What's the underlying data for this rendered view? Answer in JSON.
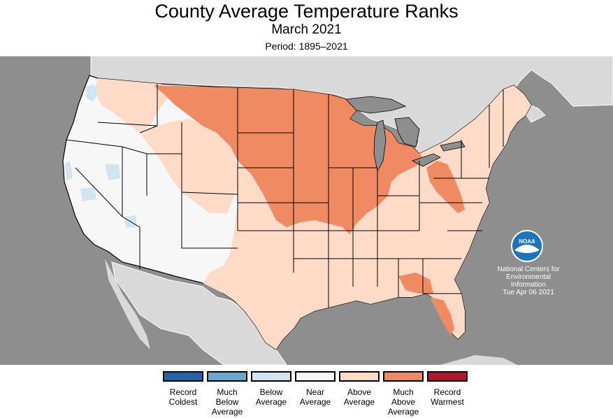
{
  "header": {
    "title": "County Average Temperature Ranks",
    "subtitle": "March 2021",
    "period": "Period: 1895–2021"
  },
  "colors": {
    "ocean": "#8e8e8e",
    "land_outside": "#d9d9d9",
    "record_coldest": "#2166ac",
    "much_below": "#67a9cf",
    "below": "#d1e5f0",
    "near": "#f7f7f7",
    "above": "#fddbc7",
    "much_above": "#ef8a62",
    "record_warmest": "#b2182b"
  },
  "legend": [
    {
      "line1": "Record",
      "line2": "Coldest",
      "line3": "",
      "color": "#2166ac"
    },
    {
      "line1": "Much",
      "line2": "Below",
      "line3": "Average",
      "color": "#67a9cf"
    },
    {
      "line1": "Below",
      "line2": "Average",
      "line3": "",
      "color": "#d1e5f0"
    },
    {
      "line1": "Near",
      "line2": "Average",
      "line3": "",
      "color": "#f7f7f7"
    },
    {
      "line1": "Above",
      "line2": "Average",
      "line3": "",
      "color": "#fddbc7"
    },
    {
      "line1": "Much",
      "line2": "Above",
      "line3": "Average",
      "color": "#ef8a62"
    },
    {
      "line1": "Record",
      "line2": "Warmest",
      "line3": "",
      "color": "#b2182b"
    }
  ],
  "noaa": {
    "logo_text": "NOAA",
    "line1": "National Centers for",
    "line2": "Environmental",
    "line3": "Information",
    "date": "Tue Apr 06 2021"
  }
}
